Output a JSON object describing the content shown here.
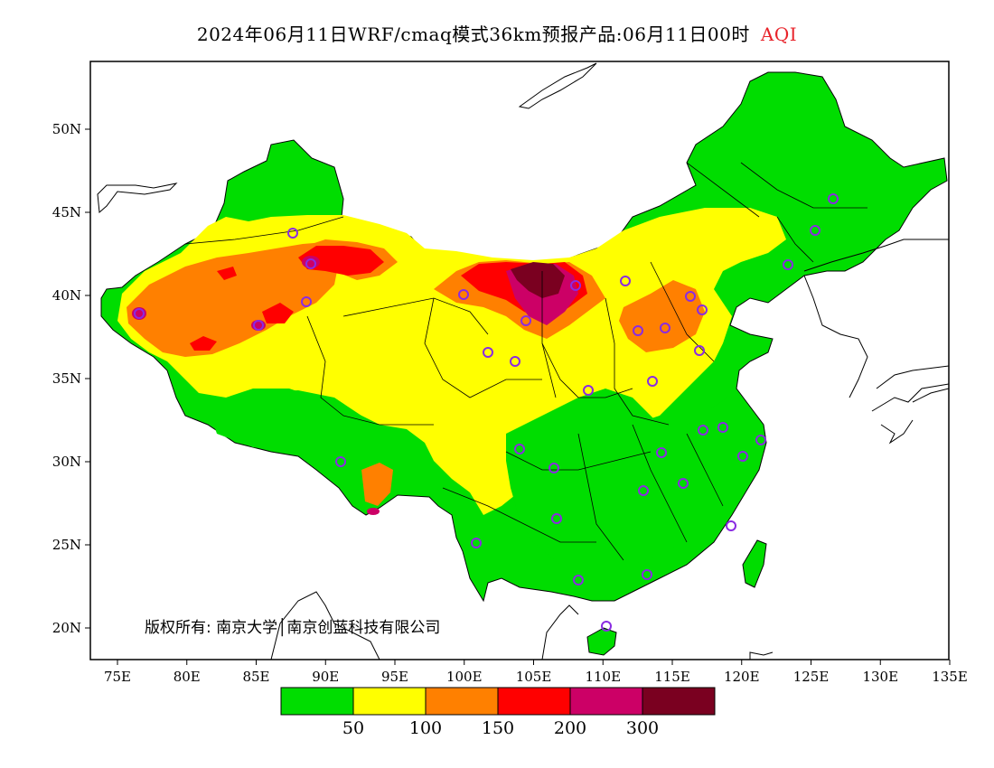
{
  "title": {
    "text": "2024年06月11日WRF/cmaq模式36km预报产品:06月11日00时",
    "variable": "AQI"
  },
  "axes": {
    "lon_ticks": [
      "75E",
      "80E",
      "85E",
      "90E",
      "95E",
      "100E",
      "105E",
      "110E",
      "115E",
      "120E",
      "125E",
      "130E",
      "135E"
    ],
    "lat_ticks": [
      "50N",
      "45N",
      "40N",
      "35N",
      "30N",
      "25N",
      "20N"
    ]
  },
  "copyright": "版权所有: 南京大学│南京创蓝科技有限公司",
  "colorbar": {
    "colors": [
      "#00dd00",
      "#ffff00",
      "#ff8000",
      "#ff0000",
      "#cc0066",
      "#7a0020"
    ],
    "labels": [
      "50",
      "100",
      "150",
      "200",
      "300"
    ]
  },
  "legend_colors": {
    "border": "#000000",
    "station": "#8a2be2",
    "water": "#ffffff"
  }
}
